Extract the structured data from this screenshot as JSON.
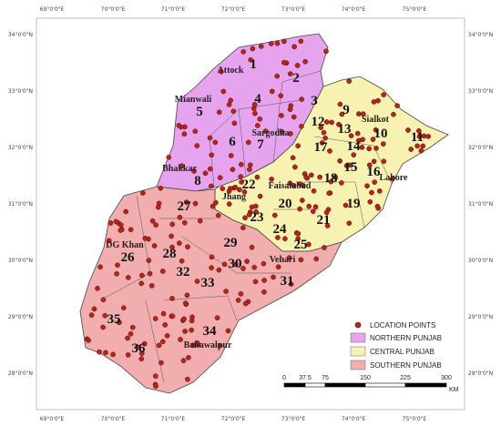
{
  "graticule": {
    "longitudes": [
      "69°0'0\"E",
      "70°0'0\"E",
      "71°0'0\"E",
      "72°0'0\"E",
      "73°0'0\"E",
      "74°0'0\"E",
      "75°0'0\"E"
    ],
    "latitudes": [
      "34°0'0\"N",
      "33°0'0\"N",
      "32°0'0\"N",
      "31°0'0\"N",
      "30°0'0\"N",
      "29°0'0\"N",
      "28°0'0\"N"
    ]
  },
  "districts": [
    "1",
    "2",
    "3",
    "4",
    "5",
    "6",
    "7",
    "8",
    "9",
    "10",
    "11",
    "12",
    "13",
    "14",
    "15",
    "16",
    "17",
    "18",
    "19",
    "20",
    "21",
    "22",
    "23",
    "24",
    "25",
    "26",
    "27",
    "28",
    "29",
    "30",
    "31",
    "32",
    "33",
    "34",
    "35",
    "36"
  ],
  "cities": [
    "Attock",
    "Mianwali",
    "Sargodha",
    "Bhakkar",
    "Jhang",
    "Faisalabad",
    "DG Khan",
    "Vehari",
    "Bahawalpur",
    "Sialkot",
    "Lahore"
  ],
  "legend": [
    "LOCATION POINTS",
    "NORTHERN PUNJAB",
    "CENTRAL PUNJAB",
    "SOUTHERN PUNJAB"
  ],
  "scale_bar": {
    "labels": [
      "0",
      "37.5",
      "75",
      "150",
      "225",
      "300"
    ],
    "unit": "KM"
  }
}
